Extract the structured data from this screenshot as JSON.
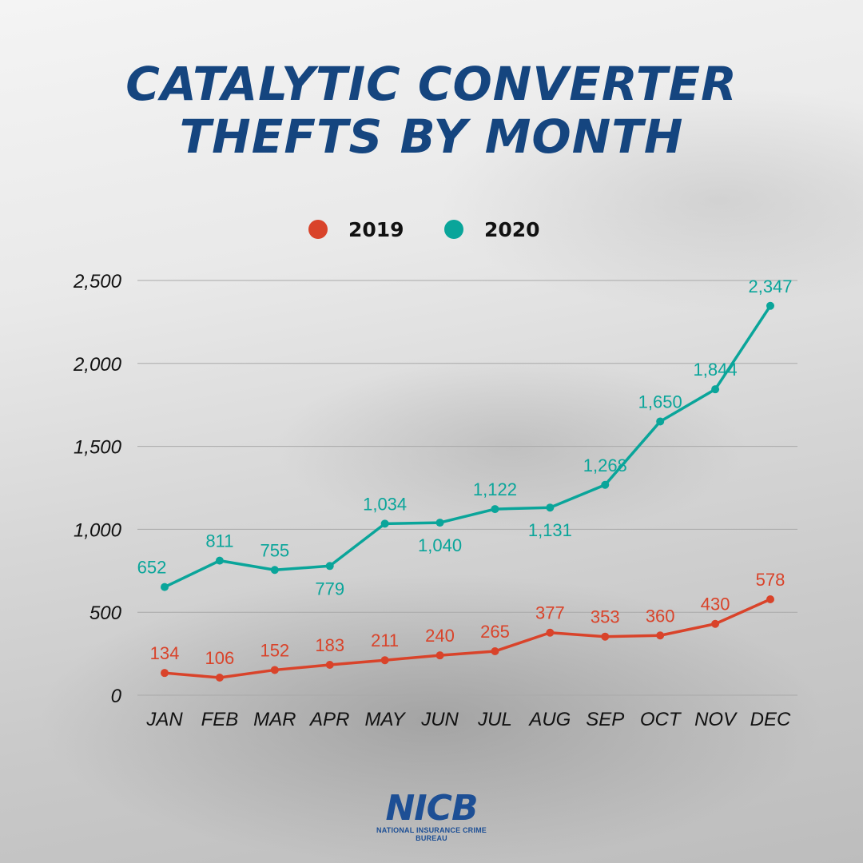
{
  "chart_data": {
    "type": "line",
    "title": "CATALYTIC CONVERTER THEFTS BY MONTH",
    "categories": [
      "JAN",
      "FEB",
      "MAR",
      "APR",
      "MAY",
      "JUN",
      "JUL",
      "AUG",
      "SEP",
      "OCT",
      "NOV",
      "DEC"
    ],
    "series": [
      {
        "name": "2019",
        "color": "#d9432a",
        "values": [
          134,
          106,
          152,
          183,
          211,
          240,
          265,
          377,
          353,
          360,
          430,
          578
        ],
        "labels": [
          "134",
          "106",
          "152",
          "183",
          "211",
          "240",
          "265",
          "377",
          "353",
          "360",
          "430",
          "578"
        ]
      },
      {
        "name": "2020",
        "color": "#0aa59a",
        "values": [
          652,
          811,
          755,
          779,
          1034,
          1040,
          1122,
          1131,
          1268,
          1650,
          1844,
          2347
        ],
        "labels": [
          "652",
          "811",
          "755",
          "779",
          "1,034",
          "1,040",
          "1,122",
          "1,131",
          "1,268",
          "1,650",
          "1,844",
          "2,347"
        ]
      }
    ],
    "yticks": [
      0,
      500,
      1000,
      1500,
      2000,
      2500
    ],
    "ytick_labels": [
      "0",
      "500",
      "1,000",
      "1,500",
      "2,000",
      "2,500"
    ],
    "ylim": [
      0,
      2500
    ],
    "grid": true,
    "legend_position": "top"
  },
  "title_lines": [
    "CATALYTIC CONVERTER",
    "THEFTS BY MONTH"
  ],
  "logo": {
    "mark": "NICB",
    "tagline": "NATIONAL INSURANCE CRIME BUREAU"
  },
  "title_color": "#15457f"
}
